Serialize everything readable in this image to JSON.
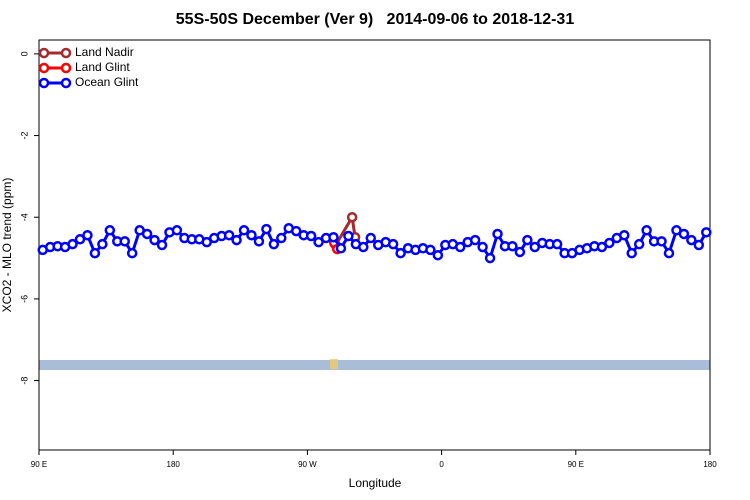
{
  "chart_data": {
    "type": "line",
    "title": "55S-50S December (Ver 9)   2014-09-06 to 2018-12-31",
    "x_label": "Longitude",
    "y_label": "XCO2 - MLO trend (ppm)",
    "xlim": [
      90,
      540
    ],
    "ylim": [
      -9.7,
      0.34
    ],
    "xticks": [
      {
        "value": 90,
        "label": "90 E"
      },
      180,
      {
        "value": 270,
        "label": "90 W"
      },
      {
        "value": 360,
        "label": "0"
      },
      {
        "value": 450,
        "label": "90 E"
      },
      {
        "value": 540,
        "label": "180"
      }
    ],
    "yticks": [
      0,
      -2,
      -4,
      -6,
      -8
    ],
    "legend": "top-left",
    "series": [
      {
        "name": "Land Nadir",
        "color": "#a52a2a",
        "x": [
          289,
          300,
          302
        ],
        "values": [
          -4.68,
          -4.0,
          -4.49
        ]
      },
      {
        "name": "Land Glint",
        "color": "#ff0000",
        "x": [
          288,
          290
        ],
        "values": [
          -4.63,
          -4.78
        ]
      },
      {
        "name": "Ocean Glint",
        "color": "#0000ff",
        "x": [
          92.5,
          97.5,
          102.5,
          107.5,
          112.5,
          117.5,
          122.5,
          127.5,
          132.5,
          137.5,
          142.5,
          147.5,
          152.5,
          157.5,
          162.5,
          167.5,
          172.5,
          177.5,
          182.5,
          187.5,
          192.5,
          197.5,
          202.5,
          207.5,
          212.5,
          217.5,
          222.5,
          227.5,
          232.5,
          237.5,
          242.5,
          247.5,
          252.5,
          257.5,
          262.5,
          267.5,
          272.5,
          277.5,
          282.5,
          287.5,
          292.5,
          297.5,
          302.5,
          307.5,
          312.5,
          317.5,
          322.5,
          327.5,
          332.5,
          337.5,
          342.5,
          347.5,
          352.5,
          357.5,
          362.5,
          367.5,
          372.5,
          377.5,
          382.5,
          387.5,
          392.5,
          397.5,
          402.5,
          407.5,
          412.5,
          417.5,
          422.5,
          427.5,
          432.5,
          437.5,
          442.5,
          447.5,
          452.5,
          457.5,
          462.5,
          467.5,
          472.5,
          477.5,
          482.5,
          487.5,
          492.5,
          497.5,
          502.5,
          507.5,
          512.5,
          517.5,
          522.5,
          527.5,
          532.5,
          537.5
        ],
        "values": [
          -4.8,
          -4.73,
          -4.71,
          -4.73,
          -4.66,
          -4.54,
          -4.44,
          -4.88,
          -4.66,
          -4.32,
          -4.59,
          -4.59,
          -4.88,
          -4.32,
          -4.41,
          -4.56,
          -4.68,
          -4.37,
          -4.32,
          -4.51,
          -4.54,
          -4.54,
          -4.61,
          -4.51,
          -4.46,
          -4.44,
          -4.56,
          -4.32,
          -4.44,
          -4.59,
          -4.29,
          -4.66,
          -4.51,
          -4.27,
          -4.34,
          -4.44,
          -4.46,
          -4.61,
          -4.51,
          -4.49,
          -4.76,
          -4.46,
          -4.66,
          -4.73,
          -4.51,
          -4.68,
          -4.61,
          -4.66,
          -4.88,
          -4.76,
          -4.8,
          -4.76,
          -4.8,
          -4.93,
          -4.68,
          -4.66,
          -4.73,
          -4.61,
          -4.56,
          -4.73,
          -5.0,
          -4.41,
          -4.71,
          -4.71,
          -4.85,
          -4.56,
          -4.73,
          -4.63,
          -4.66,
          -4.66,
          -4.88,
          -4.88,
          -4.8,
          -4.76,
          -4.71,
          -4.73,
          -4.63,
          -4.51,
          -4.44,
          -4.88,
          -4.66,
          -4.32,
          -4.59,
          -4.59,
          -4.88,
          -4.32,
          -4.41,
          -4.56,
          -4.68,
          -4.37
        ]
      }
    ]
  }
}
